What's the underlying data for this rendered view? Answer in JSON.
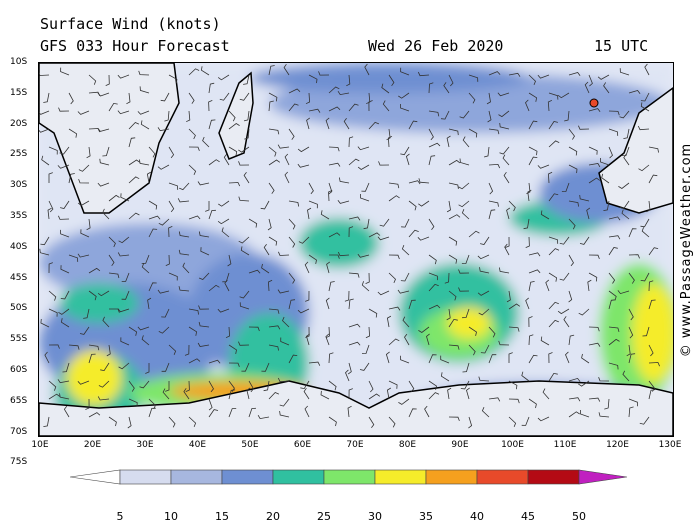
{
  "title_line1": "Surface Wind (knots)",
  "title_line2": "GFS 033 Hour Forecast",
  "date": "Wed 26 Feb 2020",
  "time": "15 UTC",
  "credit": "© www.PassageWeather.com",
  "lat_labels": [
    "10S",
    "15S",
    "20S",
    "25S",
    "30S",
    "35S",
    "40S",
    "45S",
    "50S",
    "55S",
    "60S",
    "65S",
    "70S",
    "75S"
  ],
  "lon_labels": [
    "10E",
    "20E",
    "30E",
    "40E",
    "50E",
    "60E",
    "70E",
    "80E",
    "90E",
    "100E",
    "110E",
    "120E",
    "130E"
  ],
  "colorbar": {
    "ticks": [
      "5",
      "10",
      "15",
      "20",
      "25",
      "30",
      "35",
      "40",
      "45",
      "50"
    ],
    "colors": [
      "#ffffff",
      "#d6dcef",
      "#a7b7df",
      "#6e8fd2",
      "#30c0a0",
      "#7ee66a",
      "#f5ec2a",
      "#f5a01e",
      "#e84a2a",
      "#b40a14",
      "#c020c0"
    ]
  }
}
